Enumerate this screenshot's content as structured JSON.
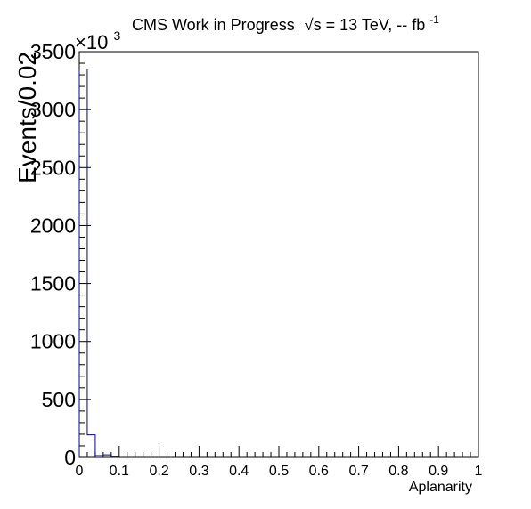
{
  "header": {
    "title_prefix": "CMS Work in Progress",
    "energy_symbol": "√s",
    "energy_text": " = 13 TeV, -- fb",
    "energy_superscript": "-1"
  },
  "colors": {
    "histogram": "#000099",
    "axis": "#000000"
  },
  "chart_data": {
    "type": "bar",
    "title": "CMS Work in Progress √s = 13 TeV, -- fb-1",
    "xlabel": "Aplanarity",
    "ylabel": "Events/0.02",
    "y_multiplier": {
      "text": "×10",
      "exponent": "3"
    },
    "xlim": [
      0,
      1
    ],
    "ylim": [
      0,
      3500
    ],
    "bin_width": 0.02,
    "x_ticks": [
      0,
      0.1,
      0.2,
      0.3,
      0.4,
      0.5,
      0.6,
      0.7,
      0.8,
      0.9,
      1
    ],
    "x_tick_labels": [
      "0",
      "0.1",
      "0.2",
      "0.3",
      "0.4",
      "0.5",
      "0.6",
      "0.7",
      "0.8",
      "0.9",
      "1"
    ],
    "y_ticks": [
      0,
      500,
      1000,
      1500,
      2000,
      2500,
      3000,
      3500
    ],
    "y_tick_labels": [
      "0",
      "500",
      "1000",
      "1500",
      "2000",
      "2500",
      "3000",
      "3500"
    ],
    "bin_edges_start": [
      0,
      0.02,
      0.04,
      0.06,
      0.08
    ],
    "values": [
      3350,
      195,
      15,
      22,
      3
    ],
    "grid": false,
    "legend": "none"
  }
}
